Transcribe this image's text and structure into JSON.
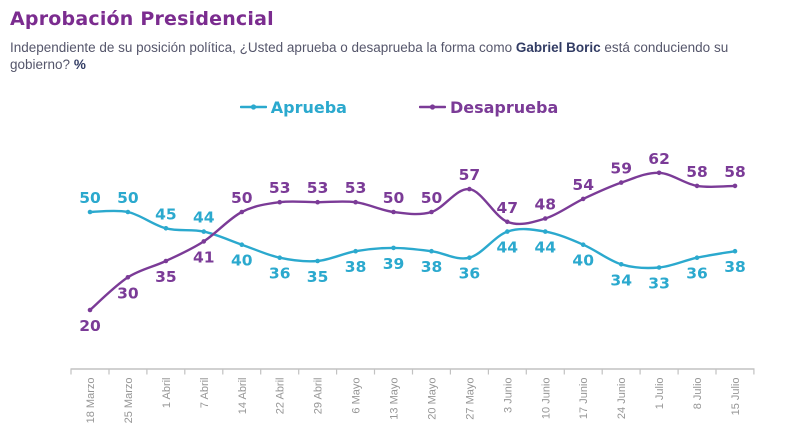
{
  "header": {
    "title": "Aprobación Presidencial",
    "subtitle_pre": "Independiente de su posición política, ¿Usted aprueba o desaprueba la forma como ",
    "subtitle_bold": "Gabriel Boric",
    "subtitle_mid": " está conduciendo su gobierno? ",
    "subtitle_pct": "%"
  },
  "legend": [
    {
      "label": "Aprueba",
      "color": "#2ba9ce",
      "marker": "line-dot-icon"
    },
    {
      "label": "Desaprueba",
      "color": "#7b3b97",
      "marker": "line-dot-icon"
    }
  ],
  "chart_data": {
    "type": "line",
    "title": "Aprobación Presidencial",
    "xlabel": "",
    "ylabel": "",
    "ylim": [
      15,
      70
    ],
    "grid": false,
    "legend_position": "top",
    "x_tick_rotation": 90,
    "value_labels": true,
    "smoothed_lines": true,
    "axis_color": "#c2c2c2",
    "tick_label_color": "#969696",
    "categories": [
      "18 Marzo",
      "25 Marzo",
      "1 Abril",
      "7 Abril",
      "14 Abril",
      "22 Abril",
      "29 Abril",
      "6 Mayo",
      "13 Mayo",
      "20 Mayo",
      "27 Mayo",
      "3 Junio",
      "10 Junio",
      "17 Junio",
      "24 Junio",
      "1 Julio",
      "8 Julio",
      "15 Julio"
    ],
    "series": [
      {
        "name": "Aprueba",
        "color": "#2ba9ce",
        "values": [
          50,
          50,
          45,
          44,
          40,
          36,
          35,
          38,
          39,
          38,
          36,
          44,
          44,
          40,
          34,
          33,
          36,
          38
        ]
      },
      {
        "name": "Desaprueba",
        "color": "#7b3b97",
        "values": [
          20,
          30,
          35,
          41,
          50,
          53,
          53,
          53,
          50,
          50,
          57,
          47,
          48,
          54,
          59,
          62,
          58,
          58
        ]
      }
    ]
  }
}
